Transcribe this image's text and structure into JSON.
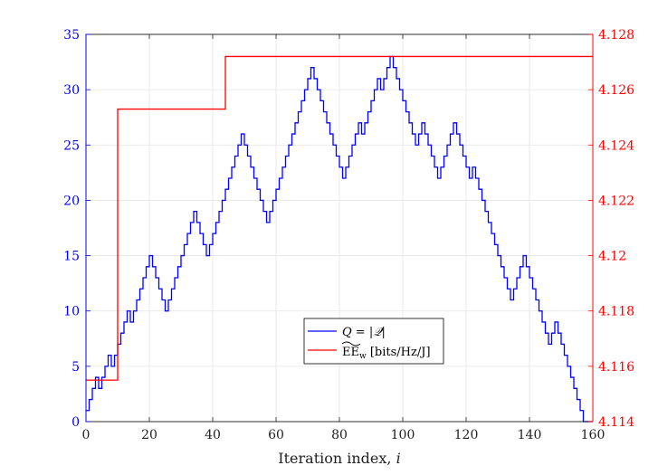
{
  "chart_data": {
    "type": "line",
    "xlabel": "Iteration index, i",
    "xlim": [
      0,
      160
    ],
    "xticks": [
      0,
      20,
      40,
      60,
      80,
      100,
      120,
      140,
      160
    ],
    "y_left": {
      "lim": [
        0,
        35
      ],
      "ticks": [
        0,
        5,
        10,
        15,
        20,
        25,
        30,
        35
      ],
      "color": "#0000ff"
    },
    "y_right": {
      "lim": [
        4.114,
        4.128
      ],
      "ticks": [
        4.114,
        4.116,
        4.118,
        4.12,
        4.122,
        4.124,
        4.126,
        4.128
      ],
      "color": "#ff0000"
    },
    "grid": true,
    "legend_placement": "lower-center",
    "series": [
      {
        "name": "Q = |𝒬|",
        "axis": "left",
        "style": "stairs",
        "color": "#0000ff",
        "x": [
          0,
          1,
          2,
          3,
          4,
          5,
          6,
          7,
          8,
          9,
          10,
          11,
          12,
          13,
          14,
          15,
          16,
          17,
          18,
          19,
          20,
          21,
          22,
          23,
          24,
          25,
          26,
          27,
          28,
          29,
          30,
          31,
          32,
          33,
          34,
          35,
          36,
          37,
          38,
          39,
          40,
          41,
          42,
          43,
          44,
          45,
          46,
          47,
          48,
          49,
          50,
          51,
          52,
          53,
          54,
          55,
          56,
          57,
          58,
          59,
          60,
          61,
          62,
          63,
          64,
          65,
          66,
          67,
          68,
          69,
          70,
          71,
          72,
          73,
          74,
          75,
          76,
          77,
          78,
          79,
          80,
          81,
          82,
          83,
          84,
          85,
          86,
          87,
          88,
          89,
          90,
          91,
          92,
          93,
          94,
          95,
          96,
          97,
          98,
          99,
          100,
          101,
          102,
          103,
          104,
          105,
          106,
          107,
          108,
          109,
          110,
          111,
          112,
          113,
          114,
          115,
          116,
          117,
          118,
          119,
          120,
          121,
          122,
          123,
          124,
          125,
          126,
          127,
          128,
          129,
          130,
          131,
          132,
          133,
          134,
          135,
          136,
          137,
          138,
          139,
          140,
          141,
          142,
          143,
          144,
          145,
          146,
          147,
          148,
          149,
          150,
          151,
          152,
          153,
          154,
          155,
          156,
          157,
          158,
          159,
          160
        ],
        "y": [
          1,
          2,
          3,
          4,
          3,
          4,
          5,
          6,
          5,
          6,
          7,
          8,
          9,
          10,
          9,
          10,
          11,
          12,
          13,
          14,
          15,
          14,
          13,
          12,
          11,
          10,
          11,
          12,
          13,
          14,
          15,
          16,
          17,
          18,
          19,
          18,
          17,
          16,
          15,
          16,
          17,
          18,
          19,
          20,
          21,
          22,
          23,
          24,
          25,
          26,
          25,
          24,
          23,
          22,
          21,
          20,
          19,
          18,
          19,
          20,
          21,
          22,
          23,
          24,
          25,
          26,
          27,
          28,
          29,
          30,
          31,
          32,
          31,
          30,
          29,
          28,
          27,
          26,
          25,
          24,
          23,
          22,
          23,
          24,
          25,
          26,
          27,
          26,
          27,
          28,
          29,
          30,
          31,
          30,
          31,
          32,
          33,
          32,
          31,
          30,
          29,
          28,
          27,
          26,
          25,
          26,
          27,
          26,
          25,
          24,
          23,
          22,
          23,
          24,
          25,
          26,
          27,
          26,
          25,
          24,
          23,
          22,
          23,
          22,
          21,
          20,
          19,
          18,
          17,
          16,
          15,
          14,
          13,
          12,
          11,
          12,
          13,
          14,
          15,
          14,
          13,
          12,
          11,
          10,
          9,
          8,
          7,
          8,
          9,
          8,
          7,
          6,
          5,
          4,
          3,
          2,
          1,
          0,
          0,
          0,
          0
        ]
      },
      {
        "name": "EE_w [bits/Hz/J]",
        "axis": "right",
        "style": "stairs",
        "color": "#ff0000",
        "x": [
          0,
          10,
          44,
          160
        ],
        "y": [
          4.1155,
          4.1253,
          4.1272,
          4.1272
        ]
      }
    ],
    "legend": [
      {
        "label": "Q = |𝒬|",
        "color": "#0000ff"
      },
      {
        "label": "EE",
        "suffix": "w",
        "units": " [bits/Hz/J]",
        "color": "#ff0000"
      }
    ]
  }
}
